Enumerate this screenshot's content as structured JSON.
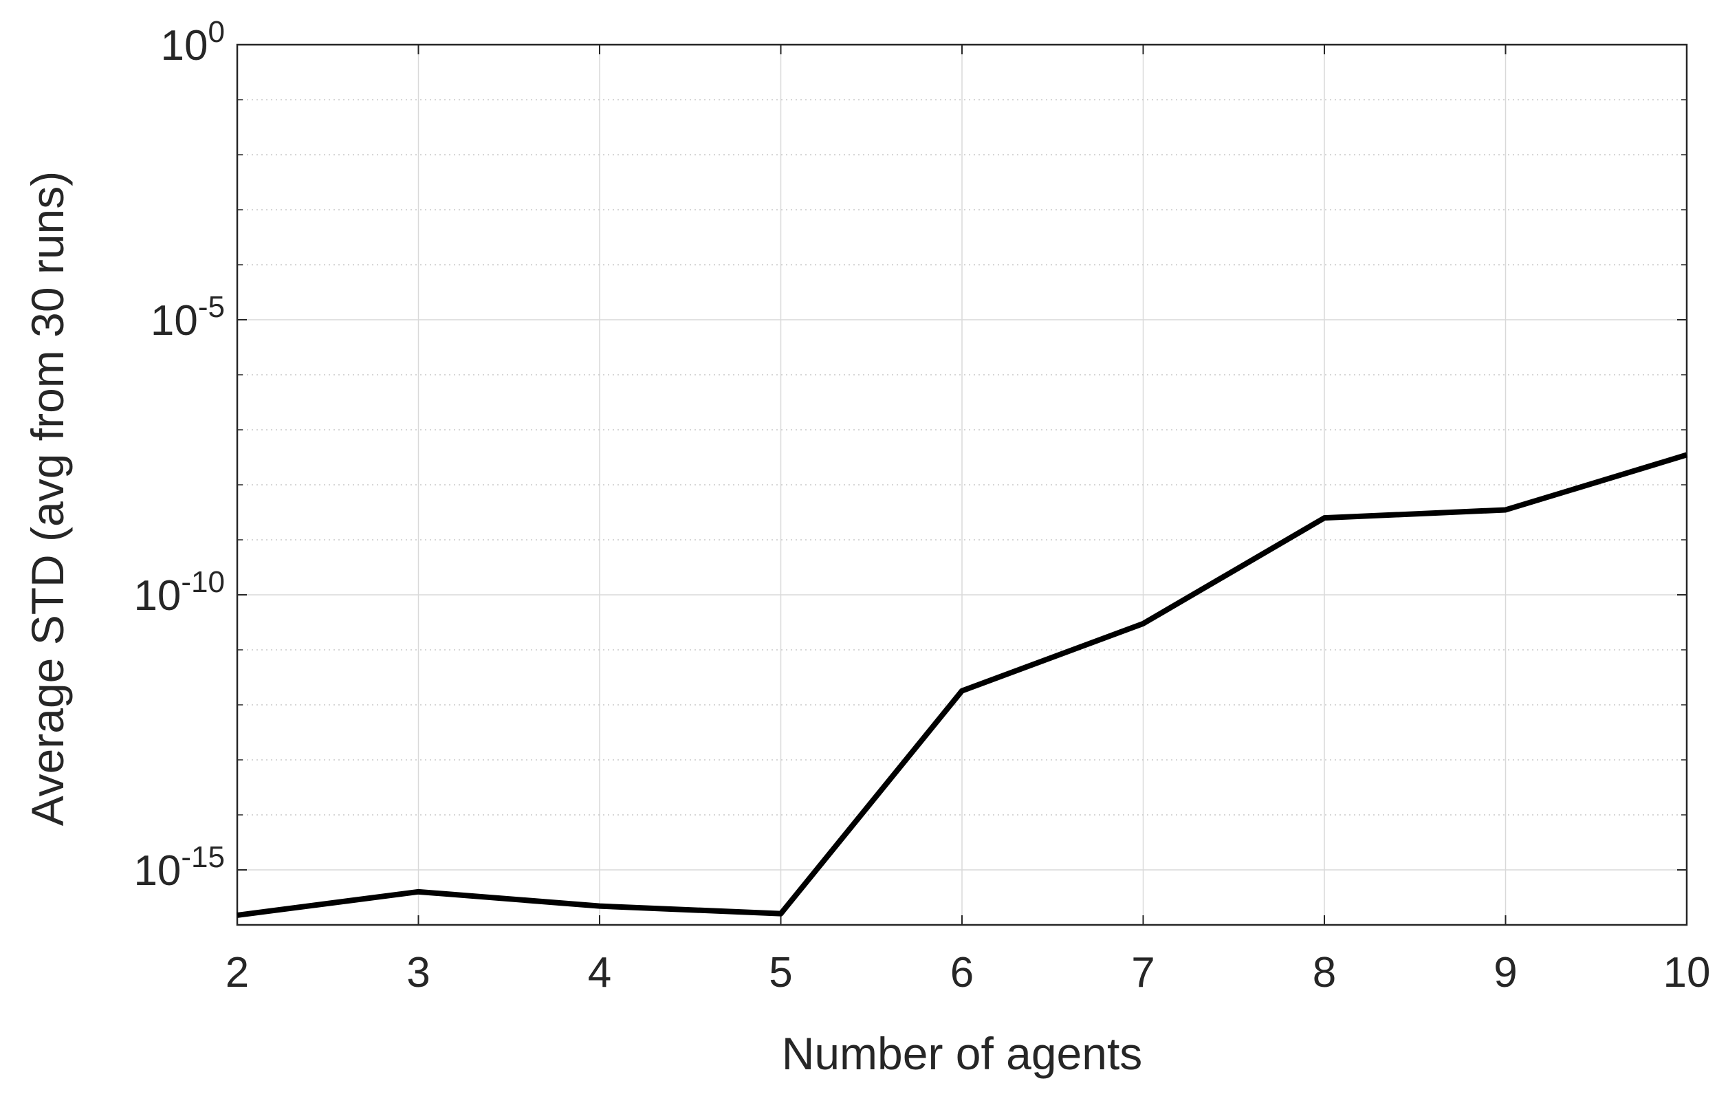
{
  "chart_data": {
    "type": "line",
    "title": "",
    "xlabel": "Number of agents",
    "ylabel": "Average STD (avg from 30 runs)",
    "x": [
      2,
      3,
      4,
      5,
      6,
      7,
      8,
      9,
      10
    ],
    "xlim": [
      2,
      10
    ],
    "xticks": [
      2,
      3,
      4,
      5,
      6,
      7,
      8,
      9,
      10
    ],
    "yscale": "log",
    "ylim": [
      1e-16,
      1
    ],
    "ytick_exponents": [
      -15,
      -10,
      -5,
      0
    ],
    "ytick_base": "10",
    "grid": true,
    "minor_grid": true,
    "line_color": "#000000",
    "series": [
      {
        "values": [
          1.5e-16,
          4e-16,
          2.2e-16,
          1.6e-16,
          1.8e-12,
          3e-11,
          2.5e-09,
          3.5e-09,
          3.5e-08
        ]
      }
    ]
  }
}
